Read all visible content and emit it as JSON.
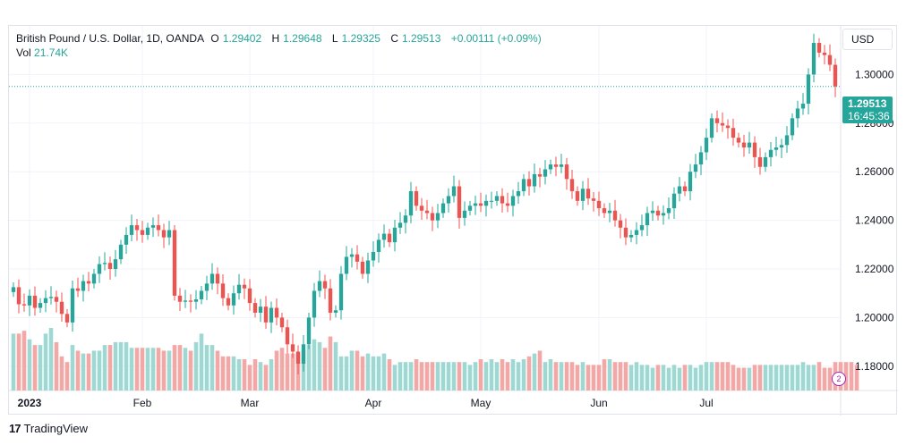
{
  "header_faint": "",
  "legend": {
    "symbol": "British Pound / U.S. Dollar, 1D, OANDA",
    "o_label": "O",
    "o_value": "1.29402",
    "h_label": "H",
    "h_value": "1.29648",
    "l_label": "L",
    "l_value": "1.29325",
    "c_label": "C",
    "c_value": "1.29513",
    "change": "+0.00111 (+0.09%)",
    "vol_label": "Vol",
    "vol_value": "21.74K"
  },
  "currency": "USD",
  "last_price": {
    "price": "1.29513",
    "countdown": "16:45:36"
  },
  "footer": {
    "logo": "17",
    "brand": "TradingView"
  },
  "vol_badge": "2",
  "colors": {
    "up": "#26a69a",
    "down": "#ef5350",
    "up_vol": "#9ed8d2",
    "down_vol": "#f5a7a6",
    "grid": "#f0f3fa",
    "axis_text": "#131722"
  },
  "chart_data": {
    "type": "candlestick",
    "symbol": "GBPUSD",
    "ylim": [
      1.17,
      1.32
    ],
    "y_ticks": [
      "1.30000",
      "1.28000",
      "1.26000",
      "1.24000",
      "1.22000",
      "1.20000",
      "1.18000"
    ],
    "y_tick_values": [
      1.3,
      1.28,
      1.26,
      1.24,
      1.22,
      1.2,
      1.18
    ],
    "x_ticks": [
      "2023",
      "Feb",
      "Mar",
      "Apr",
      "May",
      "Jun",
      "Jul"
    ],
    "x_tick_bars": [
      3,
      24,
      44,
      67,
      87,
      109,
      129
    ],
    "series": [
      {
        "name": "close",
        "values": [
          1.2125,
          1.2055,
          1.205,
          1.209,
          1.204,
          1.206,
          1.208,
          1.2085,
          1.2065,
          1.2015,
          1.198,
          1.212,
          1.211,
          1.215,
          1.214,
          1.218,
          1.222,
          1.2225,
          1.22,
          1.224,
          1.23,
          1.234,
          1.238,
          1.236,
          1.234,
          1.237,
          1.238,
          1.236,
          1.233,
          1.236,
          1.209,
          1.2065,
          1.207,
          1.2065,
          1.2075,
          1.211,
          1.214,
          1.218,
          1.214,
          1.208,
          1.205,
          1.21,
          1.2135,
          1.212,
          1.206,
          1.202,
          1.2045,
          1.198,
          1.204,
          1.2,
          1.196,
          1.189,
          1.186,
          1.181,
          1.189,
          1.2,
          1.211,
          1.215,
          1.212,
          1.202,
          1.203,
          1.218,
          1.225,
          1.226,
          1.223,
          1.218,
          1.2235,
          1.227,
          1.232,
          1.2345,
          1.231,
          1.237,
          1.239,
          1.242,
          1.252,
          1.246,
          1.244,
          1.243,
          1.24,
          1.243,
          1.247,
          1.25,
          1.254,
          1.241,
          1.244,
          1.246,
          1.247,
          1.246,
          1.248,
          1.248,
          1.25,
          1.247,
          1.246,
          1.25,
          1.252,
          1.257,
          1.254,
          1.259,
          1.258,
          1.261,
          1.263,
          1.262,
          1.263,
          1.257,
          1.252,
          1.248,
          1.253,
          1.249,
          1.248,
          1.245,
          1.243,
          1.244,
          1.24,
          1.237,
          1.233,
          1.234,
          1.236,
          1.238,
          1.243,
          1.244,
          1.242,
          1.243,
          1.245,
          1.251,
          1.254,
          1.252,
          1.26,
          1.263,
          1.268,
          1.274,
          1.282,
          1.28,
          1.279,
          1.278,
          1.274,
          1.272,
          1.27,
          1.272,
          1.266,
          1.262,
          1.266,
          1.269,
          1.27,
          1.271,
          1.275,
          1.282,
          1.286,
          1.288,
          1.3,
          1.313,
          1.309,
          1.308,
          1.304,
          1.2951
        ]
      },
      {
        "name": "volume",
        "values": [
          20,
          20,
          21,
          18,
          16,
          16,
          20,
          22,
          17,
          12,
          10,
          16,
          14,
          13,
          13,
          14,
          14,
          16,
          16,
          17,
          17,
          17,
          15,
          15,
          15,
          15,
          15,
          15,
          14,
          14,
          16,
          16,
          15,
          14,
          17,
          20,
          16,
          16,
          14,
          12,
          12,
          12,
          11,
          11,
          9,
          11,
          10,
          9,
          11,
          14,
          15,
          13,
          13,
          13,
          14,
          16,
          18,
          17,
          15,
          19,
          17,
          12,
          12,
          14,
          14,
          12,
          13,
          12,
          12,
          13,
          11,
          9,
          10,
          10,
          10,
          11,
          10,
          10,
          10,
          10,
          10,
          10,
          10,
          10,
          10,
          9,
          10,
          11,
          10,
          11,
          10,
          11,
          10,
          11,
          10,
          11,
          12,
          13,
          14,
          10,
          11,
          10,
          10,
          10,
          10,
          9,
          10,
          9,
          9,
          9,
          11,
          11,
          10,
          10,
          10,
          9,
          10,
          9,
          9,
          8,
          9,
          9,
          8,
          9,
          8,
          9,
          9,
          8,
          9,
          10,
          10,
          10,
          10,
          10,
          9,
          8,
          8,
          8,
          9,
          9,
          9,
          9,
          9,
          9,
          9,
          9,
          9,
          10,
          9,
          9,
          10,
          8,
          8,
          10,
          10,
          10,
          10,
          9
        ]
      }
    ]
  }
}
